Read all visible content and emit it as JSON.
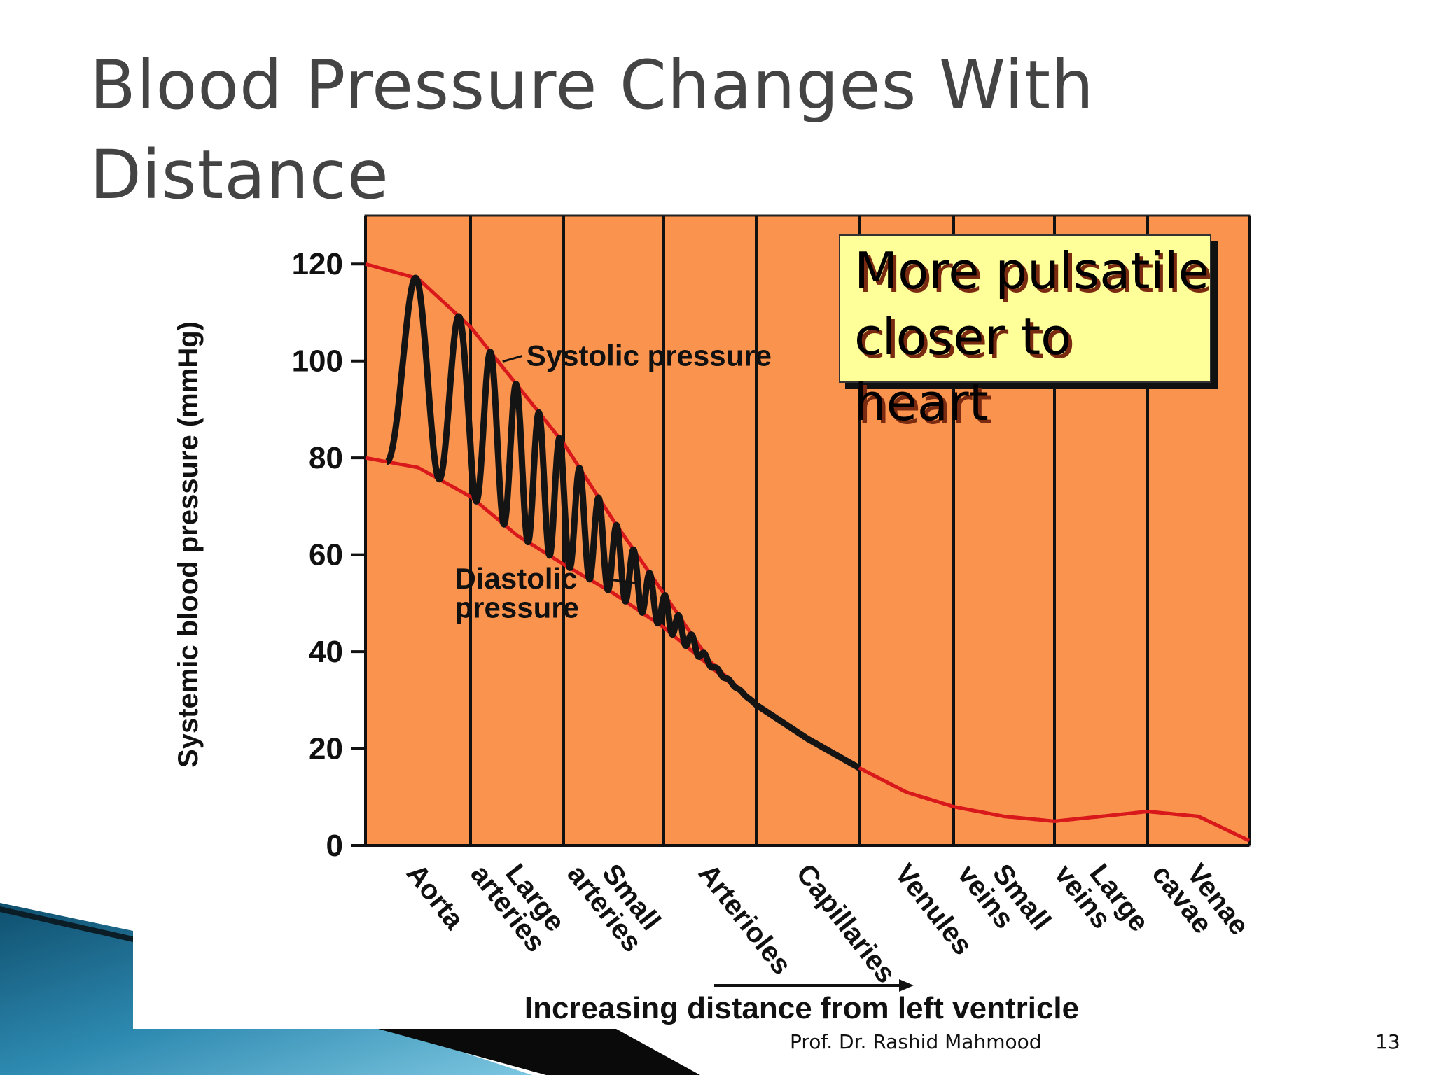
{
  "slide": {
    "title": "Blood Pressure Changes With Distance",
    "author": "Prof. Dr. Rashid Mahmood",
    "page_number": "13",
    "accent_colors": {
      "plot_bg": "#f9934e",
      "curve_envelope": "#d9181c",
      "pressure_wave": "#141414",
      "callout_bg": "#ffff99",
      "title_color": "#444444",
      "deco_blue": "#1a6a8c"
    }
  },
  "callout": {
    "text": "More pulsatile closer to heart"
  },
  "chart_data": {
    "type": "line",
    "ylabel": "Systemic blood pressure (mmHg)",
    "xlabel": "Increasing distance from left ventricle",
    "ylim": [
      0,
      130
    ],
    "yticks": [
      0,
      20,
      40,
      60,
      80,
      100,
      120
    ],
    "grid": false,
    "categories": [
      "Aorta",
      "Large arteries",
      "Small arteries",
      "Arterioles",
      "Capillaries",
      "Venules",
      "Small veins",
      "Large veins",
      "Venae cavae"
    ],
    "series": [
      {
        "name": "Systolic pressure",
        "x": [
          0,
          0.5,
          1,
          1.5,
          2,
          2.5,
          3,
          3.5,
          4,
          4.5,
          5,
          5.5,
          6,
          6.5,
          7,
          7.5,
          8,
          8.5,
          9
        ],
        "values": [
          120,
          117,
          107,
          95,
          83,
          67,
          52,
          38,
          29,
          22,
          16,
          11,
          8,
          6,
          5,
          6,
          7,
          6,
          1
        ]
      },
      {
        "name": "Diastolic pressure",
        "x": [
          0,
          0.5,
          1,
          1.5,
          2,
          2.5,
          3,
          3.5,
          4,
          4.5,
          5,
          5.5,
          6,
          6.5,
          7,
          7.5,
          8,
          8.5,
          9
        ],
        "values": [
          80,
          78,
          72,
          64,
          58,
          52,
          45,
          37,
          29,
          22,
          16,
          11,
          8,
          6,
          5,
          6,
          7,
          6,
          1
        ]
      }
    ],
    "annotations": [
      {
        "text": "Systolic pressure",
        "x": 1.6,
        "y": 99
      },
      {
        "text": "Diastolic",
        "x": 0.85,
        "y": 53
      },
      {
        "text": "pressure",
        "x": 0.85,
        "y": 47
      }
    ]
  }
}
